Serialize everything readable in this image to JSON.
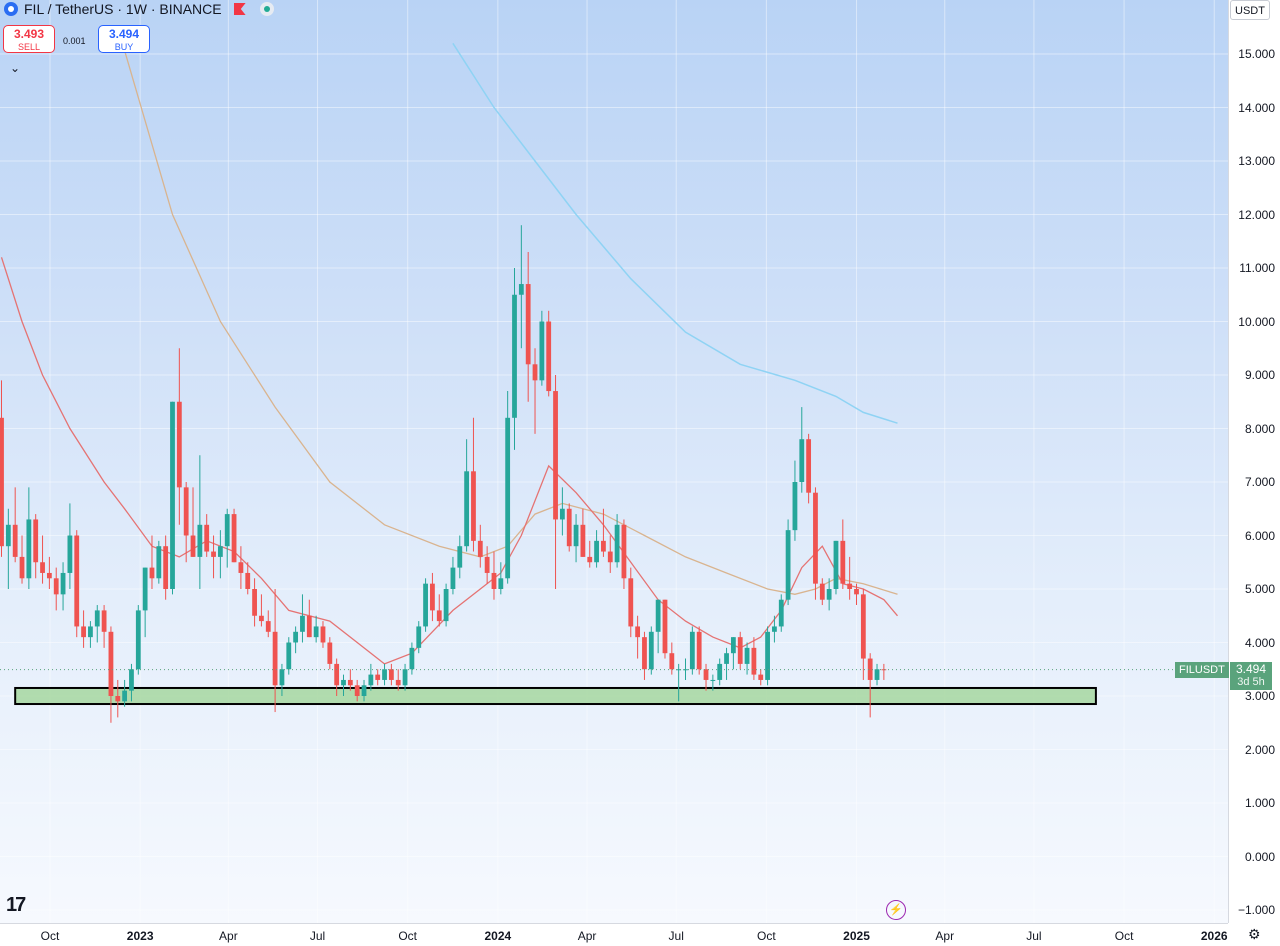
{
  "header": {
    "symbol_title": "FIL / TetherUS · 1W · BINANCE",
    "sell_price": "3.493",
    "sell_label": "SELL",
    "spread": "0.001",
    "buy_price": "3.494",
    "buy_label": "BUY",
    "collapse_icon": "chevron-down-icon",
    "flag_icon": "flag-icon",
    "status_color": "#22ab94"
  },
  "price_axis": {
    "currency": "USDT",
    "last_price": "3.494",
    "countdown": "3d 5h",
    "symbol_tag": "FILUSDT"
  },
  "branding": {
    "logo_text": "17"
  },
  "colors": {
    "up": "#26a69a",
    "down": "#ef5350",
    "ma_short": "#e57373",
    "ma_long": "#d9b48f",
    "ma_longest": "#8fd3f4",
    "support_zone": "#a6d7a0",
    "last_price_tag": "#5aa37c"
  },
  "chart_data": {
    "type": "candlestick",
    "title": "FIL / TetherUS · 1W · BINANCE",
    "ylim": [
      -1.0,
      15.0
    ],
    "y_ticks": [
      "15.000",
      "14.000",
      "13.000",
      "12.000",
      "11.000",
      "10.000",
      "9.000",
      "8.000",
      "7.000",
      "6.000",
      "5.000",
      "4.000",
      "3.000",
      "2.000",
      "1.000",
      "0.000",
      "−1.000"
    ],
    "x_ticks": [
      {
        "label": "Oct",
        "date": "2022-10-01",
        "year": false
      },
      {
        "label": "2023",
        "date": "2023-01-01",
        "year": true
      },
      {
        "label": "Apr",
        "date": "2023-04-01",
        "year": false
      },
      {
        "label": "Jul",
        "date": "2023-07-01",
        "year": false
      },
      {
        "label": "Oct",
        "date": "2023-10-01",
        "year": false
      },
      {
        "label": "2024",
        "date": "2024-01-01",
        "year": true
      },
      {
        "label": "Apr",
        "date": "2024-04-01",
        "year": false
      },
      {
        "label": "Jul",
        "date": "2024-07-01",
        "year": false
      },
      {
        "label": "Oct",
        "date": "2024-10-01",
        "year": false
      },
      {
        "label": "2025",
        "date": "2025-01-01",
        "year": true
      },
      {
        "label": "Apr",
        "date": "2025-04-01",
        "year": false
      },
      {
        "label": "Jul",
        "date": "2025-07-01",
        "year": false
      },
      {
        "label": "Oct",
        "date": "2025-10-01",
        "year": false
      },
      {
        "label": "2026",
        "date": "2026-01-01",
        "year": true
      }
    ],
    "last_price": 3.494,
    "candles_ohlc": [
      [
        8.2,
        8.9,
        5.6,
        5.8
      ],
      [
        5.8,
        6.5,
        5.0,
        6.2
      ],
      [
        6.2,
        6.9,
        5.5,
        5.6
      ],
      [
        5.6,
        6.0,
        5.1,
        5.2
      ],
      [
        5.2,
        6.9,
        5.0,
        6.3
      ],
      [
        6.3,
        6.4,
        5.2,
        5.5
      ],
      [
        5.5,
        6.0,
        5.1,
        5.3
      ],
      [
        5.3,
        5.6,
        5.0,
        5.2
      ],
      [
        5.2,
        5.4,
        4.6,
        4.9
      ],
      [
        4.9,
        5.5,
        4.6,
        5.3
      ],
      [
        5.3,
        6.6,
        5.0,
        6.0
      ],
      [
        6.0,
        6.1,
        4.1,
        4.3
      ],
      [
        4.3,
        4.6,
        3.9,
        4.1
      ],
      [
        4.1,
        4.4,
        3.9,
        4.3
      ],
      [
        4.3,
        4.7,
        4.0,
        4.6
      ],
      [
        4.6,
        4.7,
        3.9,
        4.2
      ],
      [
        4.2,
        4.3,
        2.5,
        3.0
      ],
      [
        3.0,
        3.3,
        2.6,
        2.9
      ],
      [
        2.9,
        3.3,
        2.8,
        3.1
      ],
      [
        3.1,
        3.6,
        2.9,
        3.5
      ],
      [
        3.5,
        4.7,
        3.4,
        4.6
      ],
      [
        4.6,
        5.4,
        4.1,
        5.4
      ],
      [
        5.4,
        6.0,
        5.0,
        5.2
      ],
      [
        5.2,
        5.9,
        5.1,
        5.8
      ],
      [
        5.8,
        6.0,
        4.8,
        5.0
      ],
      [
        5.0,
        8.5,
        4.9,
        8.5
      ],
      [
        8.5,
        9.5,
        6.2,
        6.9
      ],
      [
        6.9,
        7.0,
        5.5,
        6.0
      ],
      [
        6.0,
        6.9,
        5.6,
        5.6
      ],
      [
        5.6,
        7.5,
        5.0,
        6.2
      ],
      [
        6.2,
        6.4,
        5.6,
        5.7
      ],
      [
        5.7,
        6.0,
        5.2,
        5.6
      ],
      [
        5.6,
        6.1,
        5.2,
        5.8
      ],
      [
        5.8,
        6.5,
        5.4,
        6.4
      ],
      [
        6.4,
        6.5,
        5.5,
        5.5
      ],
      [
        5.5,
        5.8,
        5.0,
        5.3
      ],
      [
        5.3,
        5.5,
        4.9,
        5.0
      ],
      [
        5.0,
        5.2,
        4.3,
        4.5
      ],
      [
        4.5,
        4.9,
        4.3,
        4.4
      ],
      [
        4.4,
        4.6,
        4.1,
        4.2
      ],
      [
        4.2,
        5.0,
        2.7,
        3.2
      ],
      [
        3.2,
        3.6,
        3.0,
        3.5
      ],
      [
        3.5,
        4.1,
        3.4,
        4.0
      ],
      [
        4.0,
        4.3,
        3.8,
        4.2
      ],
      [
        4.2,
        4.9,
        4.0,
        4.5
      ],
      [
        4.5,
        4.8,
        4.1,
        4.1
      ],
      [
        4.1,
        4.5,
        4.0,
        4.3
      ],
      [
        4.3,
        4.4,
        3.9,
        4.0
      ],
      [
        4.0,
        4.1,
        3.5,
        3.6
      ],
      [
        3.6,
        3.7,
        3.0,
        3.2
      ],
      [
        3.2,
        3.4,
        3.0,
        3.3
      ],
      [
        3.3,
        3.5,
        3.1,
        3.2
      ],
      [
        3.2,
        3.3,
        2.9,
        3.0
      ],
      [
        3.0,
        3.3,
        2.9,
        3.2
      ],
      [
        3.2,
        3.6,
        3.1,
        3.4
      ],
      [
        3.4,
        3.5,
        3.2,
        3.3
      ],
      [
        3.3,
        3.6,
        3.2,
        3.5
      ],
      [
        3.5,
        3.6,
        3.2,
        3.3
      ],
      [
        3.3,
        3.5,
        3.1,
        3.2
      ],
      [
        3.2,
        3.6,
        3.1,
        3.5
      ],
      [
        3.5,
        4.0,
        3.4,
        3.9
      ],
      [
        3.9,
        4.4,
        3.8,
        4.3
      ],
      [
        4.3,
        5.2,
        4.2,
        5.1
      ],
      [
        5.1,
        5.3,
        4.4,
        4.6
      ],
      [
        4.6,
        4.9,
        4.3,
        4.4
      ],
      [
        4.4,
        5.1,
        4.3,
        5.0
      ],
      [
        5.0,
        5.6,
        4.9,
        5.4
      ],
      [
        5.4,
        6.0,
        5.2,
        5.8
      ],
      [
        5.8,
        7.8,
        5.7,
        7.2
      ],
      [
        7.2,
        8.2,
        5.7,
        5.9
      ],
      [
        5.9,
        6.2,
        5.4,
        5.6
      ],
      [
        5.6,
        5.8,
        5.1,
        5.3
      ],
      [
        5.3,
        5.7,
        4.8,
        5.0
      ],
      [
        5.0,
        5.5,
        4.9,
        5.2
      ],
      [
        5.2,
        8.7,
        5.1,
        8.2
      ],
      [
        8.2,
        11.0,
        7.6,
        10.5
      ],
      [
        10.5,
        11.8,
        9.5,
        10.7
      ],
      [
        10.7,
        11.3,
        8.5,
        9.2
      ],
      [
        9.2,
        9.5,
        7.9,
        8.9
      ],
      [
        8.9,
        10.2,
        8.8,
        10.0
      ],
      [
        10.0,
        10.2,
        8.6,
        8.7
      ],
      [
        8.7,
        9.0,
        5.0,
        6.3
      ],
      [
        6.3,
        6.9,
        6.0,
        6.5
      ],
      [
        6.5,
        6.6,
        5.7,
        5.8
      ],
      [
        5.8,
        6.4,
        5.5,
        6.2
      ],
      [
        6.2,
        6.5,
        5.6,
        5.6
      ],
      [
        5.6,
        5.9,
        5.4,
        5.5
      ],
      [
        5.5,
        6.1,
        5.4,
        5.9
      ],
      [
        5.9,
        6.5,
        5.6,
        5.7
      ],
      [
        5.7,
        6.0,
        5.3,
        5.5
      ],
      [
        5.5,
        6.4,
        5.4,
        6.2
      ],
      [
        6.2,
        6.3,
        5.0,
        5.2
      ],
      [
        5.2,
        5.4,
        4.1,
        4.3
      ],
      [
        4.3,
        4.5,
        3.7,
        4.1
      ],
      [
        4.1,
        4.2,
        3.3,
        3.5
      ],
      [
        3.5,
        4.3,
        3.4,
        4.2
      ],
      [
        4.2,
        4.8,
        3.8,
        4.8
      ],
      [
        4.8,
        4.8,
        3.7,
        3.8
      ],
      [
        3.8,
        4.0,
        3.4,
        3.5
      ],
      [
        3.5,
        3.6,
        2.9,
        3.5
      ],
      [
        3.5,
        3.7,
        3.3,
        3.5
      ],
      [
        3.5,
        4.3,
        3.4,
        4.2
      ],
      [
        4.2,
        4.3,
        3.4,
        3.5
      ],
      [
        3.5,
        3.6,
        3.1,
        3.3
      ],
      [
        3.3,
        3.4,
        3.1,
        3.3
      ],
      [
        3.3,
        3.7,
        3.2,
        3.6
      ],
      [
        3.6,
        3.9,
        3.3,
        3.8
      ],
      [
        3.8,
        4.1,
        3.5,
        4.1
      ],
      [
        4.1,
        4.2,
        3.5,
        3.6
      ],
      [
        3.6,
        4.0,
        3.4,
        3.9
      ],
      [
        3.9,
        4.1,
        3.3,
        3.4
      ],
      [
        3.4,
        3.5,
        3.2,
        3.3
      ],
      [
        3.3,
        4.3,
        3.2,
        4.2
      ],
      [
        4.2,
        4.5,
        4.0,
        4.3
      ],
      [
        4.3,
        4.9,
        4.2,
        4.8
      ],
      [
        4.8,
        6.3,
        4.7,
        6.1
      ],
      [
        6.1,
        7.4,
        5.9,
        7.0
      ],
      [
        7.0,
        8.4,
        6.8,
        7.8
      ],
      [
        7.8,
        7.9,
        6.6,
        6.8
      ],
      [
        6.8,
        6.9,
        4.8,
        5.1
      ],
      [
        5.1,
        5.2,
        4.7,
        4.8
      ],
      [
        4.8,
        5.2,
        4.6,
        5.0
      ],
      [
        5.0,
        5.9,
        4.9,
        5.9
      ],
      [
        5.9,
        6.3,
        5.0,
        5.1
      ],
      [
        5.1,
        5.6,
        4.8,
        5.0
      ],
      [
        5.0,
        5.1,
        4.7,
        4.9
      ],
      [
        4.9,
        5.0,
        3.3,
        3.7
      ],
      [
        3.7,
        3.8,
        2.6,
        3.3
      ],
      [
        3.3,
        3.6,
        3.2,
        3.5
      ],
      [
        3.5,
        3.6,
        3.3,
        3.494
      ]
    ],
    "ma_short": [
      [
        0,
        11.2
      ],
      [
        3,
        10.0
      ],
      [
        6,
        9.0
      ],
      [
        10,
        8.0
      ],
      [
        15,
        7.0
      ],
      [
        18,
        6.5
      ],
      [
        22,
        5.8
      ],
      [
        26,
        5.6
      ],
      [
        30,
        5.9
      ],
      [
        34,
        5.7
      ],
      [
        38,
        5.2
      ],
      [
        42,
        4.6
      ],
      [
        48,
        4.4
      ],
      [
        52,
        4.0
      ],
      [
        56,
        3.6
      ],
      [
        60,
        3.8
      ],
      [
        63,
        4.2
      ],
      [
        66,
        4.6
      ],
      [
        70,
        5.0
      ],
      [
        73,
        5.3
      ],
      [
        76,
        6.0
      ],
      [
        80,
        7.3
      ],
      [
        84,
        6.8
      ],
      [
        88,
        6.2
      ],
      [
        92,
        5.5
      ],
      [
        96,
        4.8
      ],
      [
        100,
        4.4
      ],
      [
        104,
        4.1
      ],
      [
        108,
        3.9
      ],
      [
        111,
        4.1
      ],
      [
        114,
        4.6
      ],
      [
        117,
        5.4
      ],
      [
        120,
        5.8
      ],
      [
        123,
        5.1
      ],
      [
        126,
        5.0
      ],
      [
        129,
        4.8
      ],
      [
        131,
        4.5
      ]
    ],
    "ma_long": [
      [
        17,
        15.5
      ],
      [
        25,
        12.0
      ],
      [
        32,
        10.0
      ],
      [
        40,
        8.4
      ],
      [
        48,
        7.0
      ],
      [
        56,
        6.2
      ],
      [
        64,
        5.8
      ],
      [
        70,
        5.6
      ],
      [
        74,
        5.8
      ],
      [
        78,
        6.4
      ],
      [
        82,
        6.6
      ],
      [
        88,
        6.4
      ],
      [
        94,
        6.0
      ],
      [
        100,
        5.6
      ],
      [
        106,
        5.3
      ],
      [
        112,
        5.0
      ],
      [
        116,
        4.9
      ],
      [
        119,
        5.0
      ],
      [
        122,
        5.2
      ],
      [
        126,
        5.1
      ],
      [
        131,
        4.9
      ]
    ],
    "ma_longest": [
      [
        66,
        15.2
      ],
      [
        72,
        14.0
      ],
      [
        78,
        13.0
      ],
      [
        84,
        12.0
      ],
      [
        92,
        10.8
      ],
      [
        100,
        9.8
      ],
      [
        108,
        9.2
      ],
      [
        116,
        8.9
      ],
      [
        122,
        8.6
      ],
      [
        126,
        8.3
      ],
      [
        131,
        8.1
      ]
    ],
    "support_zone": {
      "low": 2.85,
      "high": 3.15,
      "from_index": 2,
      "to_index": 160
    }
  }
}
